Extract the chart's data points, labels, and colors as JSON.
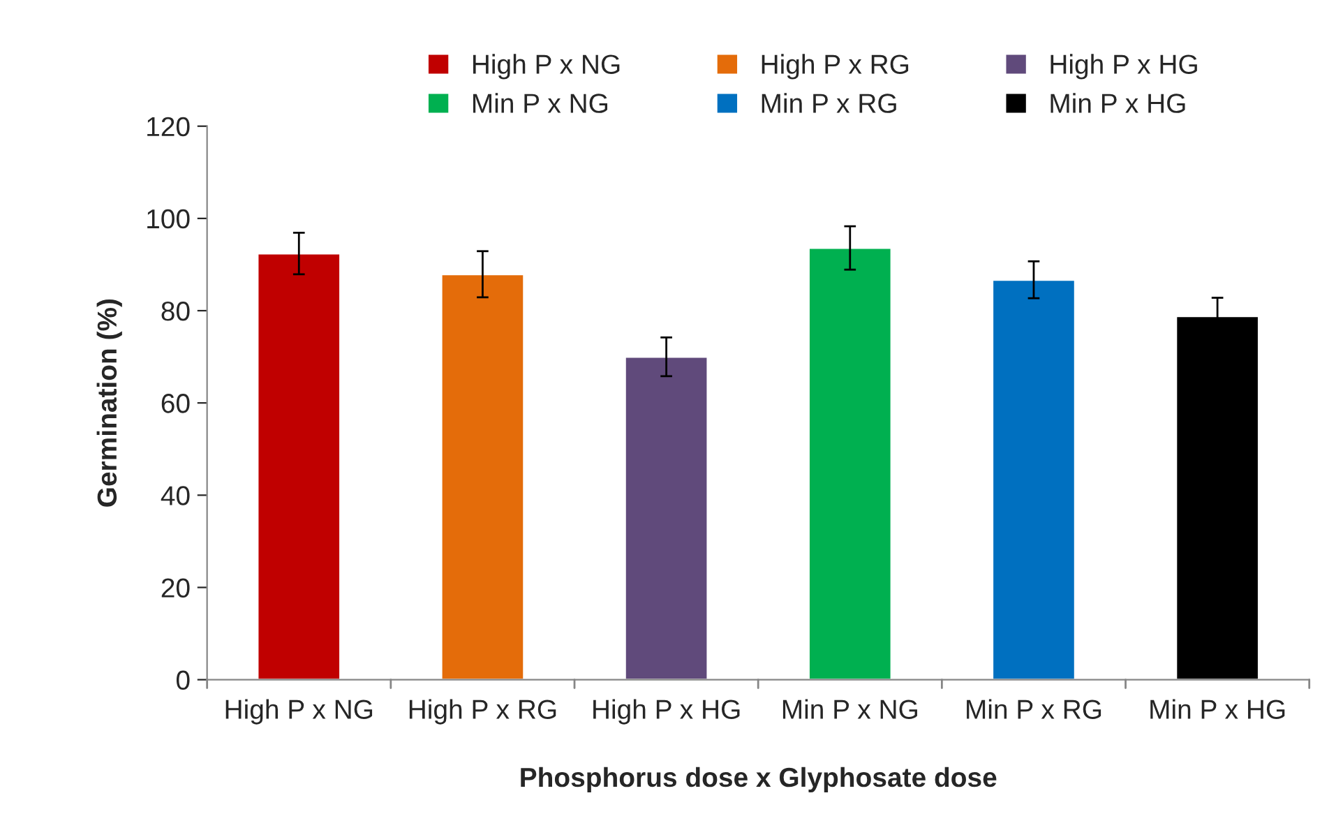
{
  "chart_data": {
    "type": "bar",
    "stacked": true,
    "xlabel": "Phosphorus dose x Glyphosate dose",
    "ylabel": "Germination (%)",
    "categories": [
      "High P x NG",
      "High P x RG",
      "High P x HG",
      "Min P x NG",
      "Min P x RG",
      "Min P x HG"
    ],
    "series": [
      {
        "name": "High P x NG",
        "color": "#c00000",
        "values": [
          92.4,
          null,
          null,
          null,
          null,
          null
        ],
        "errors": [
          4.5,
          null,
          null,
          null,
          null,
          null
        ]
      },
      {
        "name": "High P x RG",
        "color": "#e46c0a",
        "values": [
          null,
          87.9,
          null,
          null,
          null,
          null
        ],
        "errors": [
          null,
          5,
          null,
          null,
          null,
          null
        ]
      },
      {
        "name": "High P x HG",
        "color": "#604a7b",
        "values": [
          null,
          null,
          70,
          null,
          null,
          null
        ],
        "errors": [
          null,
          null,
          4.2,
          null,
          null,
          null
        ]
      },
      {
        "name": "Min P x NG",
        "color": "#00b050",
        "values": [
          null,
          null,
          null,
          93.6,
          null,
          null
        ],
        "errors": [
          null,
          null,
          null,
          4.7,
          null,
          null
        ]
      },
      {
        "name": "Min P x RG",
        "color": "#0070c0",
        "values": [
          null,
          null,
          null,
          null,
          86.7,
          null
        ],
        "errors": [
          null,
          null,
          null,
          null,
          4,
          null
        ]
      },
      {
        "name": "Min P x HG",
        "color": "#000000",
        "values": [
          null,
          null,
          null,
          null,
          null,
          78.8
        ],
        "errors": [
          null,
          null,
          null,
          null,
          null,
          4
        ]
      }
    ],
    "ylim": [
      0,
      120
    ],
    "yticks": [
      0,
      20,
      40,
      60,
      80,
      100,
      120
    ],
    "grid": false,
    "legend": "top"
  }
}
